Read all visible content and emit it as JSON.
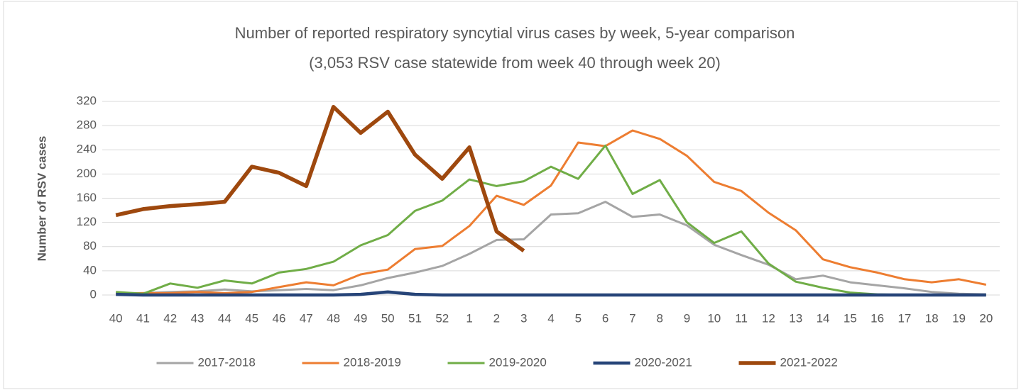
{
  "chart_data": {
    "type": "line",
    "title": "Number of reported respiratory syncytial virus cases by week, 5-year comparison",
    "subtitle": "(3,053 RSV case statewide from week 40 through week 20)",
    "y_label": "Number of RSV cases",
    "categories": [
      "40",
      "41",
      "42",
      "43",
      "44",
      "45",
      "46",
      "47",
      "48",
      "49",
      "50",
      "51",
      "52",
      "1",
      "2",
      "3",
      "4",
      "5",
      "6",
      "7",
      "8",
      "9",
      "10",
      "11",
      "12",
      "13",
      "14",
      "15",
      "16",
      "17",
      "18",
      "19",
      "20"
    ],
    "ylim": [
      0,
      320
    ],
    "yticks": [
      0,
      40,
      80,
      120,
      160,
      200,
      240,
      280,
      320
    ],
    "grid": true,
    "legend": "bottom",
    "series": [
      {
        "name": "2017-2018",
        "color": "#a5a5a5",
        "values": [
          3,
          3,
          5,
          6,
          9,
          6,
          8,
          10,
          8,
          16,
          28,
          37,
          48,
          68,
          91,
          92,
          133,
          135,
          154,
          129,
          133,
          115,
          83,
          66,
          50,
          26,
          32,
          21,
          16,
          11,
          5,
          2,
          1
        ]
      },
      {
        "name": "2018-2019",
        "color": "#ed7d31",
        "values": [
          2,
          3,
          3,
          5,
          3,
          5,
          13,
          21,
          16,
          34,
          42,
          76,
          81,
          114,
          164,
          149,
          181,
          252,
          246,
          272,
          258,
          230,
          187,
          172,
          136,
          107,
          59,
          46,
          37,
          26,
          21,
          26,
          17
        ]
      },
      {
        "name": "2019-2020",
        "color": "#70ad47",
        "values": [
          5,
          2,
          19,
          12,
          24,
          19,
          37,
          43,
          55,
          82,
          99,
          139,
          156,
          191,
          180,
          188,
          212,
          192,
          247,
          167,
          190,
          120,
          86,
          105,
          52,
          22,
          12,
          4,
          1,
          0,
          0,
          0,
          0
        ]
      },
      {
        "name": "2020-2021",
        "color": "#264478",
        "values": [
          1,
          0,
          0,
          0,
          0,
          0,
          0,
          0,
          0,
          1,
          5,
          1,
          0,
          0,
          0,
          0,
          0,
          0,
          0,
          0,
          0,
          0,
          0,
          0,
          0,
          0,
          0,
          0,
          0,
          0,
          0,
          0,
          0
        ]
      },
      {
        "name": "2021-2022",
        "color": "#9e480e",
        "values": [
          132,
          142,
          147,
          150,
          154,
          212,
          202,
          180,
          311,
          268,
          303,
          232,
          192,
          244,
          105,
          73,
          null,
          null,
          null,
          null,
          null,
          null,
          null,
          null,
          null,
          null,
          null,
          null,
          null,
          null,
          null,
          null,
          null
        ]
      }
    ]
  }
}
